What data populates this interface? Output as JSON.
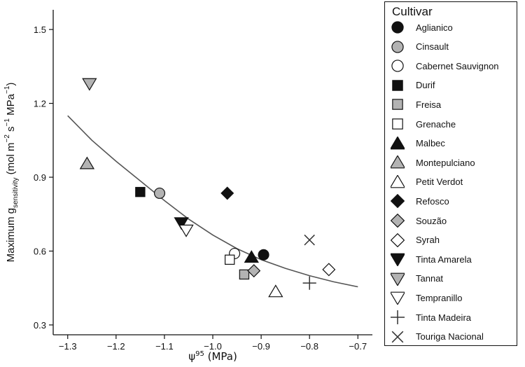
{
  "chart_data": {
    "type": "scatter",
    "xlabel_base": "ψ",
    "xlabel_sup": "95",
    "xlabel_rest": " (MPa)",
    "ylabel_parts": [
      {
        "t": "Maximum g"
      },
      {
        "t": "sensitivity",
        "sub": true
      },
      {
        "t": " (mol m"
      },
      {
        "t": "−2",
        "sup": true
      },
      {
        "t": " s"
      },
      {
        "t": "−1",
        "sup": true
      },
      {
        "t": " MPa"
      },
      {
        "t": "−1",
        "sup": true
      },
      {
        "t": ")"
      }
    ],
    "xlim": [
      -1.33,
      -0.67
    ],
    "ylim": [
      0.26,
      1.58
    ],
    "xticks": [
      -1.3,
      -1.2,
      -1.1,
      -1.0,
      -0.9,
      -0.8,
      -0.7
    ],
    "xtick_labels": [
      "−1.3",
      "−1.2",
      "−1.1",
      "−1.0",
      "−0.9",
      "−0.8",
      "−0.7"
    ],
    "yticks": [
      0.3,
      0.6,
      0.9,
      1.2,
      1.5
    ],
    "ytick_labels": [
      "0.3",
      "0.6",
      "0.9",
      "1.2",
      "1.5"
    ],
    "legend_title": "Cultivar",
    "series": [
      {
        "name": "Aglianico",
        "marker": "circle",
        "fill": "#111111",
        "points": [
          [
            -0.895,
            0.585
          ]
        ]
      },
      {
        "name": "Cinsault",
        "marker": "circle",
        "fill": "#b3b3b3",
        "points": [
          [
            -1.11,
            0.835
          ]
        ]
      },
      {
        "name": "Cabernet Sauvignon",
        "marker": "circle",
        "fill": "#ffffff",
        "points": [
          [
            -0.955,
            0.59
          ]
        ]
      },
      {
        "name": "Durif",
        "marker": "square",
        "fill": "#111111",
        "points": [
          [
            -1.15,
            0.84
          ]
        ]
      },
      {
        "name": "Freisa",
        "marker": "square",
        "fill": "#b3b3b3",
        "points": [
          [
            -0.935,
            0.505
          ]
        ]
      },
      {
        "name": "Grenache",
        "marker": "square",
        "fill": "#ffffff",
        "points": [
          [
            -0.965,
            0.565
          ]
        ]
      },
      {
        "name": "Malbec",
        "marker": "triangle-up",
        "fill": "#111111",
        "points": [
          [
            -0.92,
            0.575
          ]
        ]
      },
      {
        "name": "Montepulciano",
        "marker": "triangle-up",
        "fill": "#b3b3b3",
        "points": [
          [
            -1.26,
            0.955
          ]
        ]
      },
      {
        "name": "Petit Verdot",
        "marker": "triangle-up",
        "fill": "#ffffff",
        "points": [
          [
            -0.87,
            0.435
          ]
        ]
      },
      {
        "name": "Refosco",
        "marker": "diamond",
        "fill": "#111111",
        "points": [
          [
            -0.97,
            0.835
          ]
        ]
      },
      {
        "name": "Souzão",
        "marker": "diamond",
        "fill": "#b3b3b3",
        "points": [
          [
            -0.915,
            0.52
          ]
        ]
      },
      {
        "name": "Syrah",
        "marker": "diamond",
        "fill": "#ffffff",
        "points": [
          [
            -0.76,
            0.525
          ]
        ]
      },
      {
        "name": "Tinta Amarela",
        "marker": "triangle-down",
        "fill": "#111111",
        "points": [
          [
            -1.065,
            0.715
          ]
        ]
      },
      {
        "name": "Tannat",
        "marker": "triangle-down",
        "fill": "#b3b3b3",
        "points": [
          [
            -1.255,
            1.28
          ]
        ]
      },
      {
        "name": "Tempranillo",
        "marker": "triangle-down",
        "fill": "#ffffff",
        "points": [
          [
            -1.055,
            0.685
          ]
        ]
      },
      {
        "name": "Tinta Madeira",
        "marker": "plus",
        "fill": "none",
        "points": [
          [
            -0.8,
            0.47
          ]
        ]
      },
      {
        "name": "Touriga Nacional",
        "marker": "x",
        "fill": "none",
        "points": [
          [
            -0.8,
            0.645
          ]
        ]
      }
    ],
    "fit_curve": {
      "x": [
        -1.3,
        -1.25,
        -1.2,
        -1.15,
        -1.1,
        -1.05,
        -1.0,
        -0.95,
        -0.9,
        -0.85,
        -0.8,
        -0.75,
        -0.7
      ],
      "y": [
        1.15,
        1.05,
        0.965,
        0.885,
        0.805,
        0.73,
        0.665,
        0.61,
        0.565,
        0.53,
        0.5,
        0.475,
        0.455
      ]
    }
  }
}
